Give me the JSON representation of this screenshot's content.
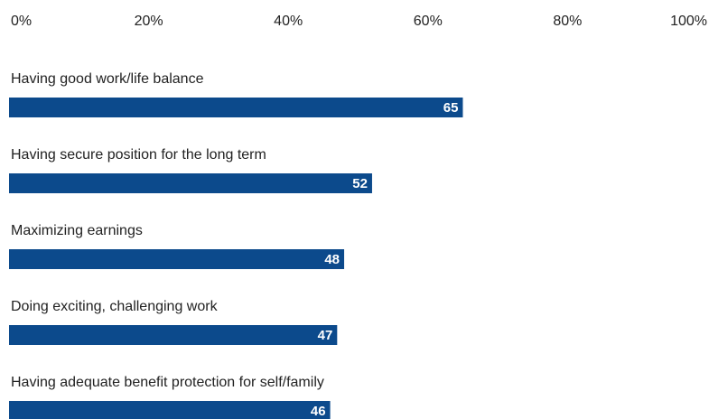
{
  "chart_data": {
    "type": "bar",
    "orientation": "horizontal",
    "categories": [
      "Having good work/life balance",
      "Having secure position for the long term",
      "Maximizing earnings",
      "Doing exciting, challenging work",
      "Having adequate benefit protection for self/family"
    ],
    "values": [
      65,
      52,
      48,
      47,
      46
    ],
    "color": "#0c4a8c",
    "xlim": [
      0,
      100
    ],
    "xticks": [
      {
        "value": 0,
        "label": "0%"
      },
      {
        "value": 20,
        "label": "20%"
      },
      {
        "value": 40,
        "label": "40%"
      },
      {
        "value": 60,
        "label": "60%"
      },
      {
        "value": 80,
        "label": "80%"
      },
      {
        "value": 100,
        "label": "100%"
      }
    ],
    "grid": false
  }
}
